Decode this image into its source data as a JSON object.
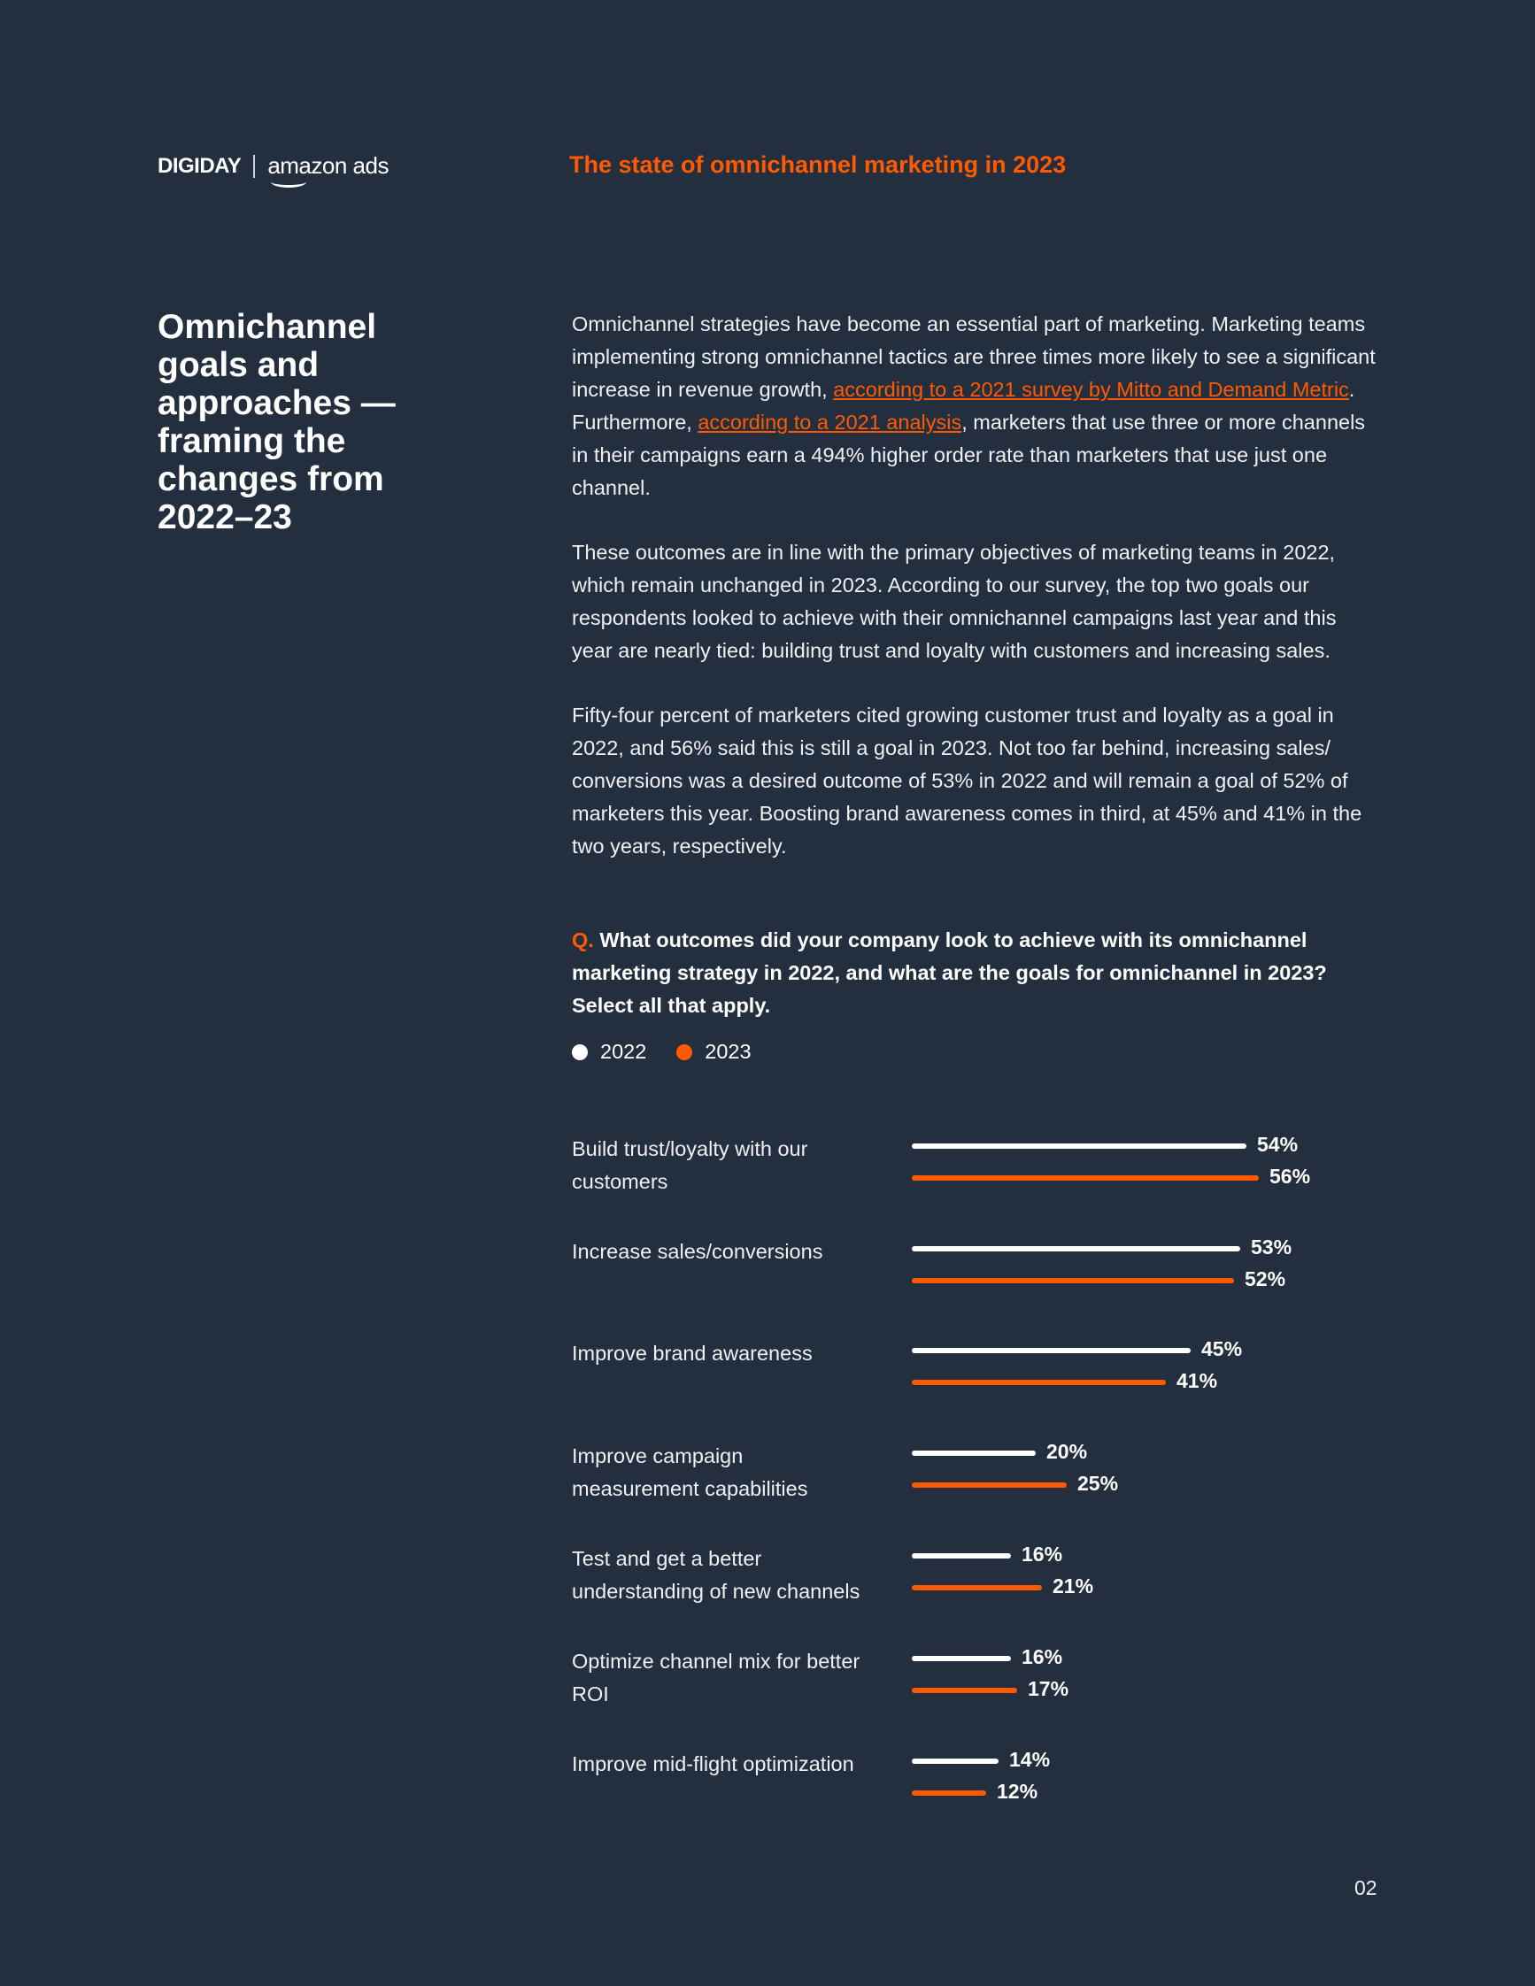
{
  "header": {
    "brand_digiday": "DIGIDAY",
    "brand_amazon": "amazon ads",
    "title": "The state of omnichannel marketing in 2023"
  },
  "section_title": "Omnichannel goals and approaches — framing the changes from 2022–23",
  "body": {
    "p1_a": "Omnichannel strategies have become an essential part of marketing. Marketing teams implementing strong omnichannel tactics are three times more likely to see a significant increase in revenue growth, ",
    "p1_link1": "according to a 2021 survey by Mitto and Demand Metric",
    "p1_b": ". Furthermore, ",
    "p1_link2": "according to a 2021 analysis",
    "p1_c": ", marketers that use three or more channels in their campaigns earn a 494% higher order rate than marketers that use just one channel.",
    "p2": "These outcomes are in line with the primary objectives of marketing teams in 2022, which remain unchanged in 2023. According to our survey, the top two goals our respondents looked to achieve with their omnichannel campaigns last year and this year are nearly tied: building trust and loyalty with customers and increasing sales.",
    "p3": "Fifty-four percent of marketers cited growing customer trust and loyalty as a goal in 2022, and 56% said this is still a goal in 2023. Not too far behind, increasing sales/ conversions was a desired outcome of 53% in 2022 and will remain a goal of 52% of marketers this year. Boosting brand awareness comes in third, at 45% and 41% in the two years, respectively."
  },
  "question": {
    "prefix": "Q.",
    "text": "What outcomes did your company look to achieve with its omnichannel marketing strategy in 2022, and what are the goals for omnichannel in 2023? Select all that apply."
  },
  "chart_data": {
    "type": "bar",
    "orientation": "horizontal",
    "legend": [
      "2022",
      "2023"
    ],
    "colors": {
      "2022": "#ffffff",
      "2023": "#ff5a00"
    },
    "categories": [
      "Build trust/loyalty with our customers",
      "Increase sales/conversions",
      "Improve brand awareness",
      "Improve campaign measurement capabilities",
      "Test and get a better understanding of new channels",
      "Optimize channel mix for better ROI",
      "Improve mid-flight optimization"
    ],
    "series": [
      {
        "name": "2022",
        "values": [
          54,
          53,
          45,
          20,
          16,
          16,
          14
        ]
      },
      {
        "name": "2023",
        "values": [
          56,
          52,
          41,
          25,
          21,
          17,
          12
        ]
      }
    ],
    "value_labels": {
      "2022": [
        "54%",
        "53%",
        "45%",
        "20%",
        "16%",
        "16%",
        "14%"
      ],
      "2023": [
        "56%",
        "52%",
        "41%",
        "25%",
        "21%",
        "17%",
        "12%"
      ]
    },
    "unit": "%"
  },
  "page_number": "02"
}
